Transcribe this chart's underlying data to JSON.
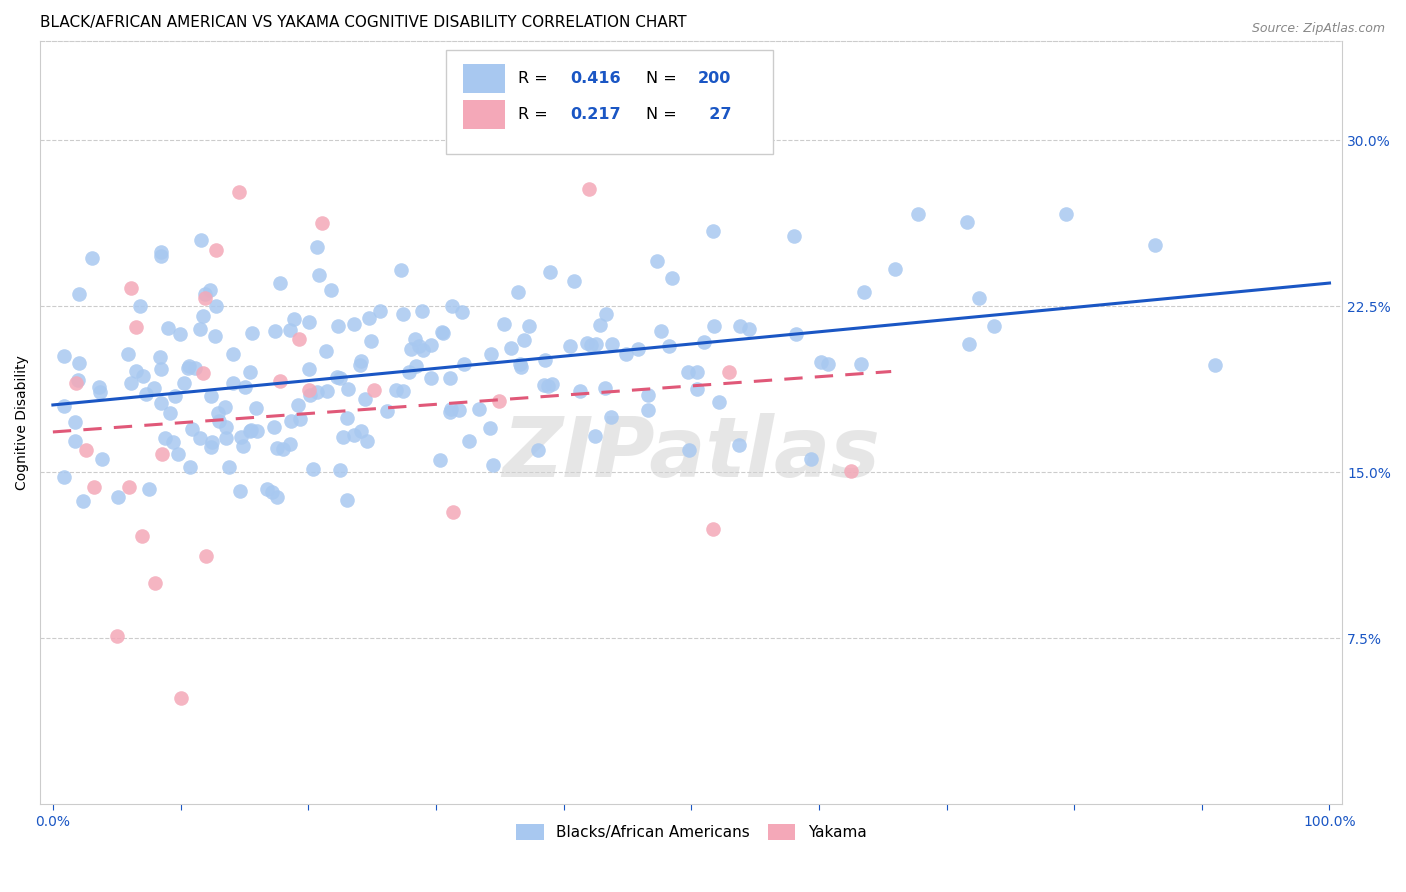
{
  "title": "BLACK/AFRICAN AMERICAN VS YAKAMA COGNITIVE DISABILITY CORRELATION CHART",
  "source": "Source: ZipAtlas.com",
  "ylabel": "Cognitive Disability",
  "blue_R": 0.416,
  "blue_N": 200,
  "pink_R": 0.217,
  "pink_N": 27,
  "blue_color": "#a8c8f0",
  "pink_color": "#f4a8b8",
  "blue_line_color": "#1a56c4",
  "pink_line_color": "#e05878",
  "watermark": "ZIPatlas",
  "legend_labels": [
    "Blacks/African Americans",
    "Yakama"
  ],
  "ytick_labels": [
    "7.5%",
    "15.0%",
    "22.5%",
    "30.0%"
  ],
  "ytick_vals": [
    0.075,
    0.15,
    0.225,
    0.3
  ],
  "title_fontsize": 11,
  "axis_label_fontsize": 10,
  "tick_fontsize": 10,
  "source_fontsize": 9
}
